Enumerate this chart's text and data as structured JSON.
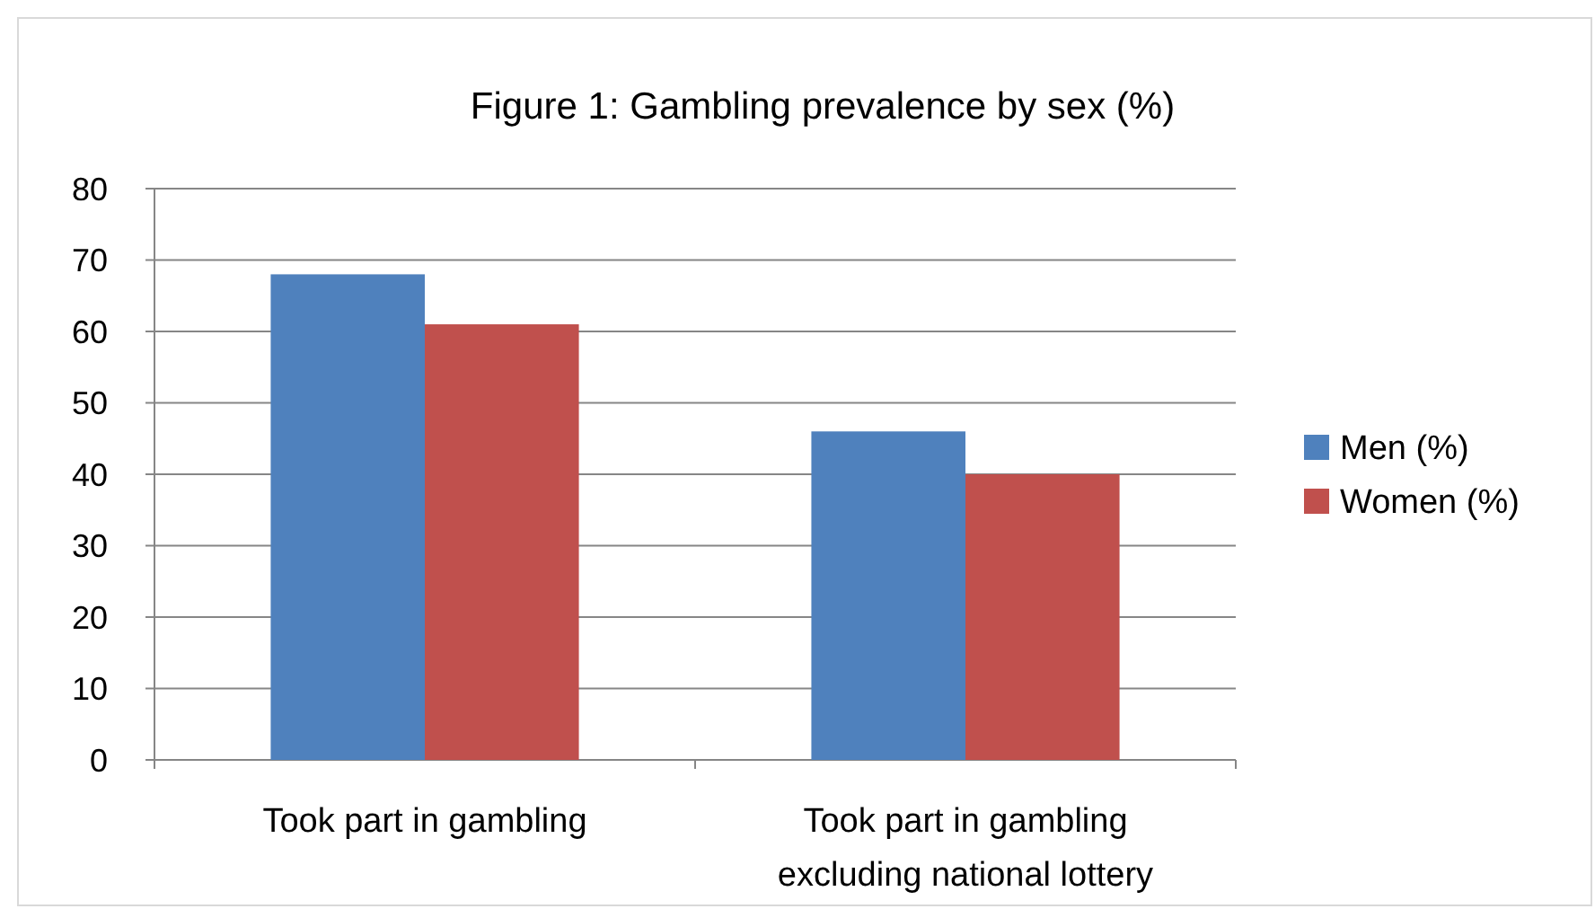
{
  "chart_data": {
    "type": "bar",
    "title": "Figure 1: Gambling prevalence by sex (%)",
    "categories": [
      "Took part in gambling",
      "Took part in gambling excluding national lottery"
    ],
    "series": [
      {
        "name": "Men (%)",
        "color": "#4f81bd",
        "values": [
          68,
          46
        ]
      },
      {
        "name": "Women (%)",
        "color": "#c0504d",
        "values": [
          61,
          40
        ]
      }
    ],
    "ylim": [
      0,
      80
    ],
    "yticks": [
      0,
      10,
      20,
      30,
      40,
      50,
      60,
      70,
      80
    ],
    "grid": "y",
    "legend": "right"
  }
}
